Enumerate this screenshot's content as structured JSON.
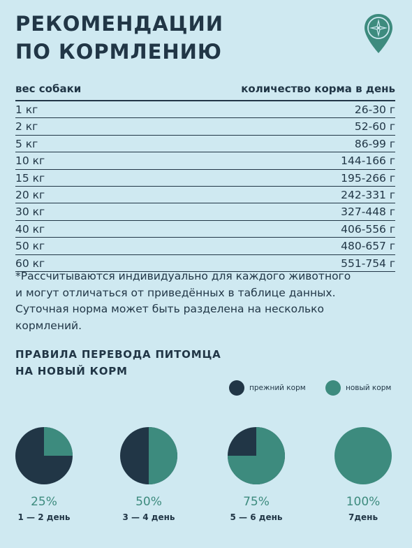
{
  "colors": {
    "background": "#cfe9f1",
    "dark": "#213646",
    "green": "#3d8b7e"
  },
  "logo": {
    "icon": "compass-icon"
  },
  "title": {
    "line1": "РЕКОМЕНДАЦИИ",
    "line2": "ПО КОРМЛЕНИЮ"
  },
  "table": {
    "headers": {
      "weight": "вес собаки",
      "amount": "количество корма в день"
    },
    "rows": [
      {
        "weight": "1 кг",
        "amount": "26-30 г"
      },
      {
        "weight": "2 кг",
        "amount": "52-60 г"
      },
      {
        "weight": "5 кг",
        "amount": "86-99 г"
      },
      {
        "weight": "10 кг",
        "amount": "144-166 г"
      },
      {
        "weight": "15 кг",
        "amount": "195-266 г"
      },
      {
        "weight": "20 кг",
        "amount": "242-331 г"
      },
      {
        "weight": "30 кг",
        "amount": "327-448 г"
      },
      {
        "weight": "40 кг",
        "amount": "406-556 г"
      },
      {
        "weight": "50 кг",
        "amount": "480-657 г"
      },
      {
        "weight": "60 кг",
        "amount": "551-754 г"
      }
    ]
  },
  "note": {
    "line1": "*Рассчитываются индивидуально для каждого животного",
    "line2": "и могут отличаться от приведённых в таблице данных.",
    "line3": "Суточная норма может быть разделена на несколько",
    "line4": "кормлений."
  },
  "transition": {
    "title": {
      "line1": "ПРАВИЛА ПЕРЕВОДА ПИТОМЦА",
      "line2": "НА НОВЫЙ КОРМ"
    },
    "legend": {
      "old": "прежний корм",
      "new": "новый корм"
    },
    "steps": [
      {
        "new_fraction": 0.25,
        "percent": "25%",
        "days": "1 — 2 день"
      },
      {
        "new_fraction": 0.5,
        "percent": "50%",
        "days": "3 — 4 день"
      },
      {
        "new_fraction": 0.75,
        "percent": "75%",
        "days": "5 — 6 день"
      },
      {
        "new_fraction": 1.0,
        "percent": "100%",
        "days": "7день"
      }
    ]
  }
}
